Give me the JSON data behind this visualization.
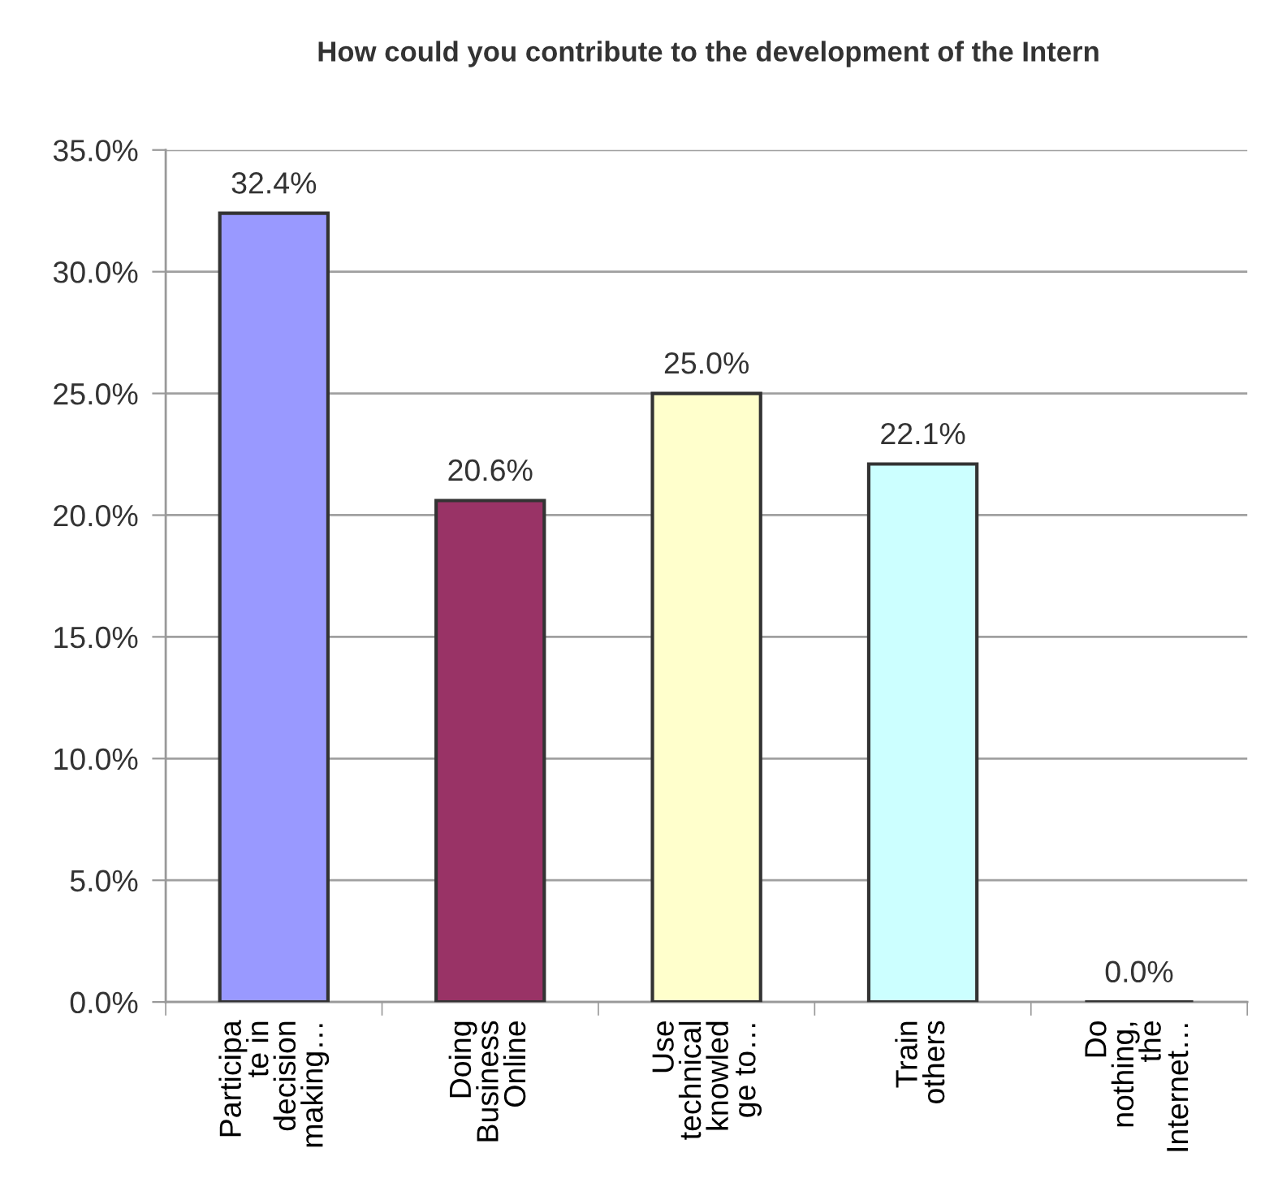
{
  "chart_data": {
    "type": "bar",
    "title": "How could you contribute to the development of the Intern",
    "categories": [
      "Participa\nte in\ndecision\nmaking…",
      "Doing\nBusiness\nOnline",
      "Use\ntechnical\nknowled\nge to…",
      "Train\nothers",
      "Do\nnothing,\nthe\nInternet…"
    ],
    "values": [
      32.4,
      20.6,
      25.0,
      22.1,
      0.0
    ],
    "colors": [
      "#9999ff",
      "#993366",
      "#ffffcc",
      "#ccffff",
      null
    ],
    "value_labels": [
      "32.4%",
      "20.6%",
      "25.0%",
      "22.1%",
      "0.0%"
    ],
    "ylim": [
      0,
      35
    ],
    "yticks": [
      {
        "value": 0,
        "label": "0.0%"
      },
      {
        "value": 5,
        "label": "5.0%"
      },
      {
        "value": 10,
        "label": "10.0%"
      },
      {
        "value": 15,
        "label": "15.0%"
      },
      {
        "value": 20,
        "label": "20.0%"
      },
      {
        "value": 25,
        "label": "25.0%"
      },
      {
        "value": 30,
        "label": "30.0%"
      },
      {
        "value": 35,
        "label": "35.0%"
      }
    ],
    "grid": "y"
  }
}
